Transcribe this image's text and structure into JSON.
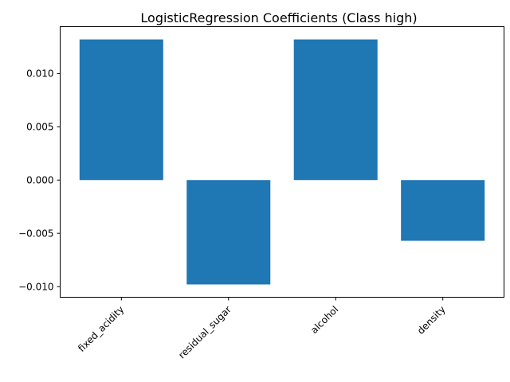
{
  "chart_data": {
    "type": "bar",
    "title": "LogisticRegression Coefficients (Class high)",
    "xlabel": "",
    "ylabel": "",
    "categories": [
      "fixed_acidity",
      "residual_sugar",
      "alcohol",
      "density"
    ],
    "values": [
      0.0132,
      -0.0098,
      0.0132,
      -0.0057
    ],
    "ylim": [
      -0.011,
      0.0144
    ],
    "yticks": [
      -0.01,
      -0.005,
      0.0,
      0.005,
      0.01
    ],
    "ytick_labels": [
      "−0.010",
      "−0.005",
      "0.000",
      "0.005",
      "0.010"
    ],
    "xtick_rotation": 45,
    "grid": false,
    "bar_color": "#1f77b4"
  }
}
